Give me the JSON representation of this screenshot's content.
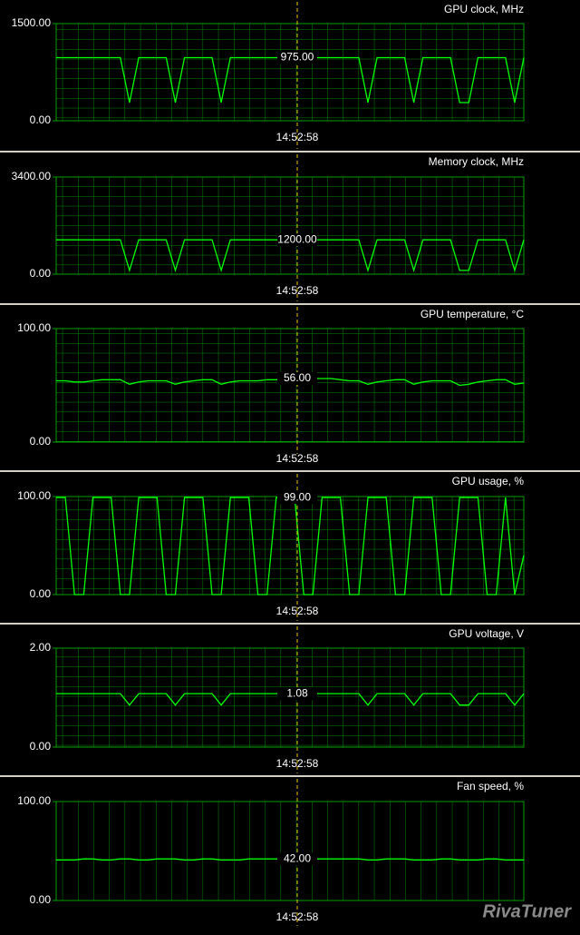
{
  "chart_data": [
    {
      "type": "line",
      "title": "GPU clock, MHz",
      "color": "#00ff00",
      "grid": "both",
      "ylim": [
        0,
        1500
      ],
      "yticks": [
        {
          "value": 0,
          "label": "0.00"
        },
        {
          "value": 1500,
          "label": "1500.00"
        }
      ],
      "values": [
        975,
        975,
        975,
        975,
        975,
        975,
        975,
        975,
        280,
        975,
        975,
        975,
        975,
        280,
        975,
        975,
        975,
        975,
        280,
        975,
        975,
        975,
        975,
        975,
        975,
        975,
        975,
        975,
        975,
        975,
        975,
        975,
        975,
        975,
        280,
        975,
        975,
        975,
        975,
        280,
        975,
        975,
        975,
        975,
        280,
        280,
        975,
        975,
        975,
        975,
        280,
        975
      ],
      "cursor": {
        "time": "14:52:58",
        "value": 975,
        "label": "975.00"
      }
    },
    {
      "type": "line",
      "title": "Memory clock, MHz",
      "color": "#00ff00",
      "grid": "both",
      "ylim": [
        0,
        3400
      ],
      "yticks": [
        {
          "value": 0,
          "label": "0.00"
        },
        {
          "value": 3400,
          "label": "3400.00"
        }
      ],
      "values": [
        1200,
        1200,
        1200,
        1200,
        1200,
        1200,
        1200,
        1200,
        130,
        1200,
        1200,
        1200,
        1200,
        130,
        1200,
        1200,
        1200,
        1200,
        130,
        1200,
        1200,
        1200,
        1200,
        1200,
        1200,
        1200,
        1200,
        1200,
        1200,
        1200,
        1200,
        1200,
        1200,
        1200,
        130,
        1200,
        1200,
        1200,
        1200,
        130,
        1200,
        1200,
        1200,
        1200,
        130,
        130,
        1200,
        1200,
        1200,
        1200,
        130,
        1200
      ],
      "cursor": {
        "time": "14:52:58",
        "value": 1200,
        "label": "1200.00"
      }
    },
    {
      "type": "line",
      "title": "GPU temperature, °C",
      "color": "#00ff00",
      "grid": "both",
      "ylim": [
        0,
        100
      ],
      "yticks": [
        {
          "value": 0,
          "label": "0.00"
        },
        {
          "value": 100,
          "label": "100.00"
        }
      ],
      "values": [
        54,
        54,
        53,
        53,
        54,
        55,
        55,
        55,
        51,
        53,
        54,
        54,
        54,
        51,
        53,
        54,
        55,
        55,
        51,
        53,
        54,
        54,
        54,
        55,
        55,
        55,
        56,
        56,
        56,
        56,
        56,
        55,
        54,
        54,
        51,
        53,
        54,
        55,
        55,
        51,
        53,
        54,
        54,
        54,
        50,
        51,
        53,
        54,
        55,
        55,
        51,
        52
      ],
      "cursor": {
        "time": "14:52:58",
        "value": 56,
        "label": "56.00"
      }
    },
    {
      "type": "line",
      "title": "GPU usage, %",
      "color": "#00ff00",
      "grid": "both",
      "ylim": [
        0,
        100
      ],
      "yticks": [
        {
          "value": 0,
          "label": "0.00"
        },
        {
          "value": 100,
          "label": "100.00"
        }
      ],
      "values": [
        99,
        99,
        0,
        0,
        99,
        99,
        99,
        0,
        0,
        99,
        99,
        99,
        0,
        0,
        99,
        99,
        99,
        0,
        0,
        99,
        99,
        99,
        0,
        0,
        99,
        99,
        99,
        0,
        0,
        99,
        99,
        99,
        0,
        0,
        99,
        99,
        99,
        0,
        0,
        99,
        99,
        99,
        0,
        0,
        99,
        99,
        99,
        0,
        0,
        99,
        0,
        40
      ],
      "cursor": {
        "time": "14:52:58",
        "value": 99,
        "label": "99.00"
      }
    },
    {
      "type": "line",
      "title": "GPU voltage, V",
      "color": "#00ff00",
      "grid": "both",
      "ylim": [
        0,
        2
      ],
      "yticks": [
        {
          "value": 0,
          "label": "0.00"
        },
        {
          "value": 2,
          "label": "2.00"
        }
      ],
      "values": [
        1.08,
        1.08,
        1.08,
        1.08,
        1.08,
        1.08,
        1.08,
        1.08,
        0.85,
        1.08,
        1.08,
        1.08,
        1.08,
        0.85,
        1.08,
        1.08,
        1.08,
        1.08,
        0.85,
        1.08,
        1.08,
        1.08,
        1.08,
        1.08,
        1.08,
        1.08,
        1.08,
        1.08,
        1.08,
        1.08,
        1.08,
        1.08,
        1.08,
        1.08,
        0.85,
        1.08,
        1.08,
        1.08,
        1.08,
        0.85,
        1.08,
        1.08,
        1.08,
        1.08,
        0.85,
        0.85,
        1.08,
        1.08,
        1.08,
        1.08,
        0.85,
        1.08
      ],
      "cursor": {
        "time": "14:52:58",
        "value": 1.08,
        "label": "1.08"
      }
    },
    {
      "type": "line",
      "title": "Fan speed, %",
      "color": "#00ff00",
      "grid": "vertical",
      "ylim": [
        0,
        100
      ],
      "yticks": [
        {
          "value": 0,
          "label": "0.00"
        },
        {
          "value": 100,
          "label": "100.00"
        }
      ],
      "values": [
        41,
        41,
        41,
        42,
        42,
        41,
        41,
        42,
        42,
        41,
        41,
        42,
        42,
        42,
        41,
        41,
        42,
        42,
        41,
        41,
        41,
        42,
        42,
        42,
        42,
        42,
        42,
        42,
        42,
        42,
        42,
        42,
        42,
        42,
        41,
        41,
        42,
        42,
        42,
        41,
        41,
        41,
        42,
        42,
        41,
        41,
        41,
        42,
        42,
        41,
        41,
        41
      ],
      "cursor": {
        "time": "14:52:58",
        "value": 42,
        "label": "42.00"
      }
    }
  ],
  "watermark": "RivaTuner"
}
